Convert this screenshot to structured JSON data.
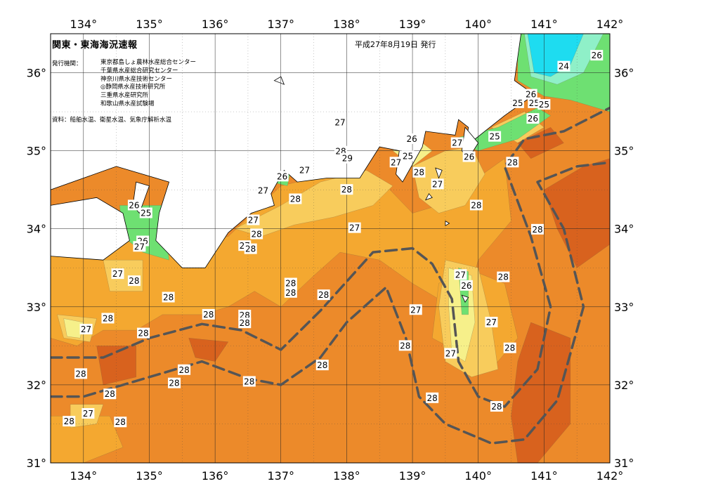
{
  "header": {
    "title": "関東・東海海況速報",
    "date": "平成27年8月19日 発行",
    "issuers_label": "発行機関：",
    "issuers": [
      "東京都島しょ農林水産総合センター",
      "千葉県水産総合研究センター",
      "神奈川県水産技術センター",
      "◎静岡県水産技術研究所",
      "三重県水産研究所",
      "和歌山県水産試験場"
    ],
    "source": "資料：船舶水温、衛星水温、気象庁解析水温"
  },
  "axes": {
    "lon_ticks": [
      "134°",
      "135°",
      "136°",
      "137°",
      "138°",
      "139°",
      "140°",
      "141°",
      "142°"
    ],
    "lat_ticks": [
      "31°",
      "32°",
      "33°",
      "34°",
      "35°",
      "36°"
    ],
    "lon_range": [
      133.5,
      142.0
    ],
    "lat_range": [
      31.0,
      36.5
    ]
  },
  "legend_colors": {
    "t24": "#1edcf0",
    "t25": "#8ff0c8",
    "t26": "#6ee072",
    "t27a": "#f6f08a",
    "t27b": "#f8cc5c",
    "t28a": "#f4a830",
    "t28b": "#ec8a2a",
    "t29": "#d8621e",
    "t29b": "#c04a1a",
    "land": "#ffffff",
    "front": "#555555"
  },
  "chart_data": {
    "type": "heatmap",
    "title": "関東・東海海況速報",
    "xlabel": "",
    "ylabel": "",
    "xlim": [
      133.5,
      142.0
    ],
    "ylim": [
      31.0,
      36.5
    ],
    "temperature_labels": [
      {
        "lon": 141.3,
        "lat": 36.08,
        "t": "24"
      },
      {
        "lon": 141.8,
        "lat": 36.22,
        "t": "26"
      },
      {
        "lon": 140.8,
        "lat": 35.72,
        "t": "26"
      },
      {
        "lon": 140.6,
        "lat": 35.61,
        "t": "25"
      },
      {
        "lon": 140.85,
        "lat": 35.61,
        "t": "25"
      },
      {
        "lon": 141.0,
        "lat": 35.59,
        "t": "25"
      },
      {
        "lon": 140.83,
        "lat": 35.41,
        "t": "26"
      },
      {
        "lon": 140.25,
        "lat": 35.18,
        "t": "25"
      },
      {
        "lon": 139.68,
        "lat": 35.1,
        "t": "27"
      },
      {
        "lon": 139.86,
        "lat": 34.92,
        "t": "26"
      },
      {
        "lon": 138.99,
        "lat": 35.15,
        "t": "26"
      },
      {
        "lon": 138.93,
        "lat": 34.93,
        "t": "25"
      },
      {
        "lon": 138.75,
        "lat": 34.85,
        "t": "27"
      },
      {
        "lon": 139.1,
        "lat": 34.72,
        "t": "28"
      },
      {
        "lon": 139.38,
        "lat": 34.57,
        "t": "27"
      },
      {
        "lon": 137.9,
        "lat": 35.36,
        "t": "27"
      },
      {
        "lon": 137.91,
        "lat": 34.99,
        "t": "28"
      },
      {
        "lon": 138.01,
        "lat": 34.9,
        "t": "29"
      },
      {
        "lon": 137.36,
        "lat": 34.75,
        "t": "27"
      },
      {
        "lon": 137.02,
        "lat": 34.67,
        "t": "26"
      },
      {
        "lon": 136.73,
        "lat": 34.49,
        "t": "27"
      },
      {
        "lon": 137.22,
        "lat": 34.38,
        "t": "28"
      },
      {
        "lon": 138.0,
        "lat": 34.5,
        "t": "28"
      },
      {
        "lon": 138.12,
        "lat": 34.01,
        "t": "27"
      },
      {
        "lon": 139.97,
        "lat": 34.3,
        "t": "28"
      },
      {
        "lon": 140.52,
        "lat": 34.85,
        "t": "28"
      },
      {
        "lon": 140.9,
        "lat": 33.99,
        "t": "28"
      },
      {
        "lon": 140.38,
        "lat": 33.38,
        "t": "28"
      },
      {
        "lon": 139.73,
        "lat": 33.41,
        "t": "27"
      },
      {
        "lon": 139.82,
        "lat": 33.27,
        "t": "26"
      },
      {
        "lon": 139.05,
        "lat": 32.96,
        "t": "27"
      },
      {
        "lon": 140.2,
        "lat": 32.8,
        "t": "27"
      },
      {
        "lon": 140.48,
        "lat": 32.47,
        "t": "28"
      },
      {
        "lon": 139.58,
        "lat": 32.4,
        "t": "27"
      },
      {
        "lon": 138.89,
        "lat": 32.5,
        "t": "28"
      },
      {
        "lon": 139.3,
        "lat": 31.83,
        "t": "28"
      },
      {
        "lon": 140.28,
        "lat": 31.72,
        "t": "28"
      },
      {
        "lon": 136.58,
        "lat": 34.11,
        "t": "27"
      },
      {
        "lon": 136.45,
        "lat": 33.78,
        "t": "27"
      },
      {
        "lon": 136.54,
        "lat": 33.74,
        "t": "28"
      },
      {
        "lon": 136.63,
        "lat": 33.93,
        "t": "28"
      },
      {
        "lon": 137.65,
        "lat": 33.15,
        "t": "28"
      },
      {
        "lon": 137.15,
        "lat": 33.3,
        "t": "28"
      },
      {
        "lon": 137.15,
        "lat": 33.18,
        "t": "28"
      },
      {
        "lon": 135.9,
        "lat": 32.9,
        "t": "28"
      },
      {
        "lon": 136.45,
        "lat": 32.89,
        "t": "28"
      },
      {
        "lon": 136.45,
        "lat": 32.79,
        "t": "28"
      },
      {
        "lon": 137.63,
        "lat": 32.25,
        "t": "28"
      },
      {
        "lon": 136.52,
        "lat": 32.04,
        "t": "28"
      },
      {
        "lon": 135.53,
        "lat": 32.19,
        "t": "28"
      },
      {
        "lon": 135.38,
        "lat": 32.02,
        "t": "28"
      },
      {
        "lon": 134.9,
        "lat": 33.84,
        "t": "26"
      },
      {
        "lon": 134.85,
        "lat": 33.77,
        "t": "27"
      },
      {
        "lon": 134.52,
        "lat": 33.42,
        "t": "27"
      },
      {
        "lon": 134.77,
        "lat": 33.33,
        "t": "28"
      },
      {
        "lon": 135.29,
        "lat": 33.12,
        "t": "28"
      },
      {
        "lon": 134.37,
        "lat": 32.85,
        "t": "28"
      },
      {
        "lon": 134.04,
        "lat": 32.71,
        "t": "27"
      },
      {
        "lon": 134.91,
        "lat": 32.66,
        "t": "28"
      },
      {
        "lon": 133.96,
        "lat": 32.14,
        "t": "28"
      },
      {
        "lon": 134.4,
        "lat": 31.88,
        "t": "28"
      },
      {
        "lon": 134.07,
        "lat": 31.63,
        "t": "27"
      },
      {
        "lon": 133.78,
        "lat": 31.53,
        "t": "28"
      },
      {
        "lon": 134.56,
        "lat": 31.52,
        "t": "28"
      },
      {
        "lon": 134.77,
        "lat": 34.3,
        "t": "26"
      },
      {
        "lon": 134.95,
        "lat": 34.2,
        "t": "25"
      }
    ],
    "fronts": [
      {
        "name": "north",
        "points": [
          [
            133.5,
            32.35
          ],
          [
            134.3,
            32.35
          ],
          [
            135.0,
            32.6
          ],
          [
            135.8,
            32.78
          ],
          [
            136.4,
            32.7
          ],
          [
            137.0,
            32.45
          ],
          [
            137.6,
            32.95
          ],
          [
            138.4,
            33.7
          ],
          [
            139.0,
            33.75
          ],
          [
            139.3,
            33.55
          ],
          [
            139.6,
            33.1
          ],
          [
            139.7,
            32.3
          ],
          [
            140.0,
            31.85
          ],
          [
            140.4,
            31.72
          ],
          [
            140.9,
            32.2
          ],
          [
            141.1,
            33.0
          ],
          [
            140.8,
            33.9
          ],
          [
            140.4,
            34.8
          ],
          [
            140.7,
            35.15
          ],
          [
            141.3,
            35.25
          ],
          [
            142.0,
            35.55
          ]
        ]
      },
      {
        "name": "south",
        "points": [
          [
            133.5,
            31.85
          ],
          [
            134.0,
            31.85
          ],
          [
            134.8,
            32.05
          ],
          [
            135.8,
            32.3
          ],
          [
            136.5,
            32.08
          ],
          [
            137.0,
            32.0
          ],
          [
            137.6,
            32.35
          ],
          [
            138.0,
            32.8
          ],
          [
            138.6,
            33.25
          ],
          [
            138.9,
            32.6
          ],
          [
            139.1,
            31.85
          ],
          [
            139.5,
            31.5
          ],
          [
            140.2,
            31.25
          ],
          [
            140.7,
            31.3
          ],
          [
            141.2,
            31.8
          ],
          [
            141.6,
            33.0
          ],
          [
            141.3,
            34.0
          ],
          [
            140.9,
            34.6
          ],
          [
            141.5,
            34.8
          ],
          [
            142.0,
            34.85
          ]
        ]
      }
    ],
    "grid": true
  }
}
